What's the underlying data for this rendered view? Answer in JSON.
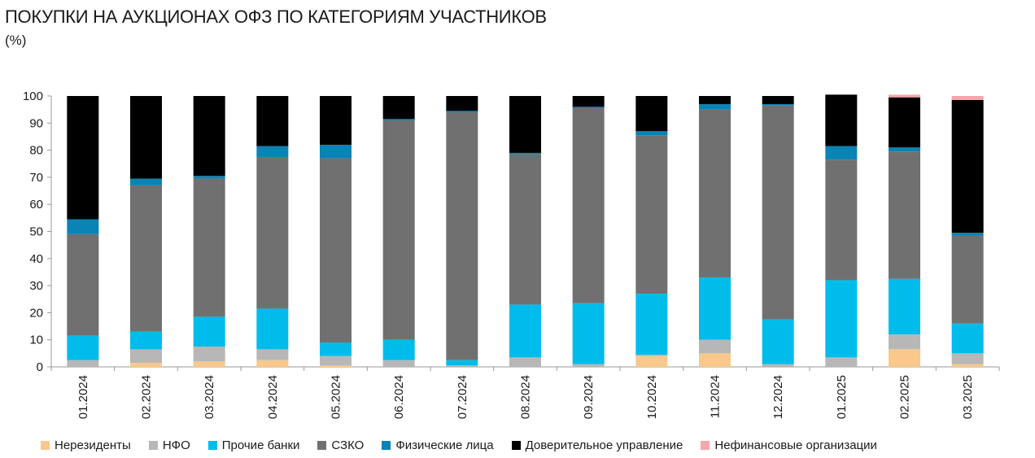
{
  "title": "ПОКУПКИ НА АУКЦИОНАХ ОФЗ ПО КАТЕГОРИЯМ УЧАСТНИКОВ",
  "subtitle": "(%)",
  "chart_data": {
    "type": "bar",
    "stacked": true,
    "categories": [
      "01.2024",
      "02.2024",
      "03.2024",
      "04.2024",
      "05.2024",
      "06.2024",
      "07.2024",
      "08.2024",
      "09.2024",
      "10.2024",
      "11.2024",
      "12.2024",
      "01.2025",
      "02.2025",
      "03.2025"
    ],
    "ylim": [
      0,
      100
    ],
    "yticks": [
      0,
      10,
      20,
      30,
      40,
      50,
      60,
      70,
      80,
      90,
      100
    ],
    "grid": false,
    "legend_position": "bottom",
    "series": [
      {
        "name": "Нерезиденты",
        "color": "#F9C88A",
        "values": [
          0,
          1.5,
          2,
          2.5,
          0.5,
          0,
          0,
          0,
          0,
          4,
          5,
          0,
          0,
          6.5,
          1
        ]
      },
      {
        "name": "НФО",
        "color": "#B7B7B7",
        "values": [
          2.5,
          5,
          5.5,
          4,
          3.5,
          2.5,
          0.5,
          3.5,
          1,
          0.5,
          5,
          1,
          3.5,
          5.5,
          4
        ]
      },
      {
        "name": "Прочие банки",
        "color": "#00BCEB",
        "values": [
          9,
          6.5,
          11,
          15,
          5,
          7.5,
          2,
          19.5,
          22.5,
          22.5,
          23,
          16.5,
          28.5,
          20.5,
          11
        ]
      },
      {
        "name": "СЗКО",
        "color": "#707070",
        "values": [
          37.5,
          54,
          51,
          56,
          68,
          81,
          91.5,
          55.5,
          72,
          58.5,
          62,
          79,
          44.5,
          47,
          32.5
        ]
      },
      {
        "name": "Физические лица",
        "color": "#0A83B5",
        "values": [
          5.5,
          2.5,
          1,
          4,
          5,
          0.5,
          0.5,
          0.5,
          0.5,
          1.5,
          2,
          0.5,
          5,
          1.5,
          1
        ]
      },
      {
        "name": "Доверительное управление",
        "color": "#000000",
        "values": [
          45.5,
          30.5,
          29.5,
          18.5,
          18,
          8.5,
          5.5,
          21,
          4,
          13,
          3,
          3,
          19,
          18.5,
          49
        ]
      },
      {
        "name": "Нефинансовые организации",
        "color": "#F4A6AC",
        "values": [
          0,
          0,
          0,
          0,
          0,
          0,
          0,
          0,
          0,
          0,
          0,
          0,
          0,
          1,
          1.5
        ]
      }
    ]
  }
}
